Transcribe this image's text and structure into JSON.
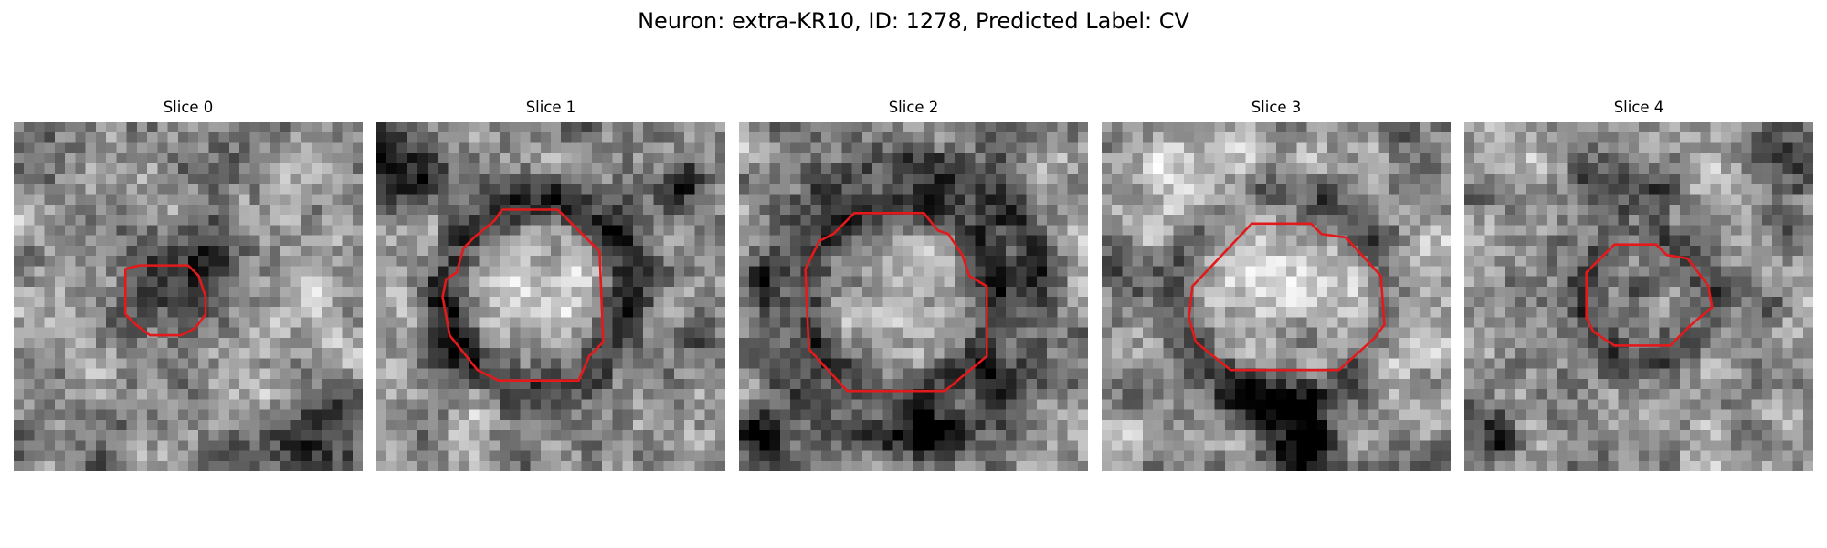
{
  "figure": {
    "title": "Neuron: extra-KR10, ID: 1278, Predicted Label: CV",
    "colormap": "gray",
    "roi_color": "#e31a1c"
  },
  "slices": [
    {
      "title": "Slice 0",
      "roi_polygon": [
        [
          0.32,
          0.42
        ],
        [
          0.36,
          0.41
        ],
        [
          0.5,
          0.41
        ],
        [
          0.53,
          0.44
        ],
        [
          0.55,
          0.5
        ],
        [
          0.55,
          0.55
        ],
        [
          0.52,
          0.59
        ],
        [
          0.48,
          0.61
        ],
        [
          0.39,
          0.61
        ],
        [
          0.35,
          0.58
        ],
        [
          0.32,
          0.55
        ]
      ]
    },
    {
      "title": "Slice 1",
      "roi_polygon": [
        [
          0.34,
          0.28
        ],
        [
          0.36,
          0.25
        ],
        [
          0.52,
          0.25
        ],
        [
          0.64,
          0.37
        ],
        [
          0.65,
          0.63
        ],
        [
          0.61,
          0.67
        ],
        [
          0.58,
          0.74
        ],
        [
          0.35,
          0.74
        ],
        [
          0.29,
          0.71
        ],
        [
          0.21,
          0.61
        ],
        [
          0.19,
          0.5
        ],
        [
          0.2,
          0.45
        ],
        [
          0.23,
          0.43
        ],
        [
          0.25,
          0.36
        ],
        [
          0.28,
          0.33
        ]
      ]
    },
    {
      "title": "Slice 2",
      "roi_polygon": [
        [
          0.23,
          0.34
        ],
        [
          0.27,
          0.32
        ],
        [
          0.33,
          0.26
        ],
        [
          0.53,
          0.26
        ],
        [
          0.57,
          0.31
        ],
        [
          0.6,
          0.32
        ],
        [
          0.64,
          0.38
        ],
        [
          0.66,
          0.44
        ],
        [
          0.71,
          0.47
        ],
        [
          0.71,
          0.67
        ],
        [
          0.59,
          0.77
        ],
        [
          0.31,
          0.77
        ],
        [
          0.2,
          0.65
        ],
        [
          0.19,
          0.42
        ]
      ]
    },
    {
      "title": "Slice 3",
      "roi_polygon": [
        [
          0.26,
          0.47
        ],
        [
          0.43,
          0.29
        ],
        [
          0.6,
          0.29
        ],
        [
          0.63,
          0.32
        ],
        [
          0.7,
          0.33
        ],
        [
          0.8,
          0.44
        ],
        [
          0.81,
          0.58
        ],
        [
          0.78,
          0.62
        ],
        [
          0.68,
          0.71
        ],
        [
          0.37,
          0.71
        ],
        [
          0.27,
          0.63
        ],
        [
          0.25,
          0.56
        ]
      ]
    },
    {
      "title": "Slice 4",
      "roi_polygon": [
        [
          0.35,
          0.43
        ],
        [
          0.43,
          0.35
        ],
        [
          0.55,
          0.35
        ],
        [
          0.58,
          0.38
        ],
        [
          0.64,
          0.39
        ],
        [
          0.7,
          0.47
        ],
        [
          0.71,
          0.53
        ],
        [
          0.65,
          0.58
        ],
        [
          0.59,
          0.64
        ],
        [
          0.43,
          0.64
        ],
        [
          0.37,
          0.6
        ],
        [
          0.35,
          0.56
        ]
      ]
    }
  ]
}
